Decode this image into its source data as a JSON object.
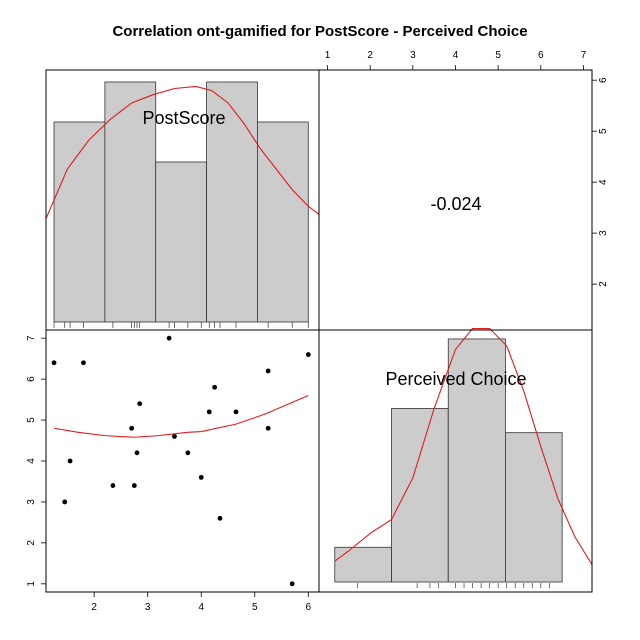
{
  "chart_data": {
    "type": "pairs",
    "title": "Correlation ont-gamified for PostScore - Perceived Choice",
    "variables": [
      "PostScore",
      "Perceived Choice"
    ],
    "correlation": "-0.024",
    "postscore_axis": {
      "range": [
        1.1,
        6.2
      ],
      "ticks": [
        2,
        3,
        4,
        5,
        6
      ]
    },
    "choice_axis": {
      "range": [
        0.8,
        7.2
      ],
      "ticks": [
        1,
        2,
        3,
        4,
        5,
        6,
        7
      ]
    },
    "postscore_histogram": {
      "bins": [
        [
          1.25,
          2.2
        ],
        [
          2.2,
          3.15
        ],
        [
          3.15,
          4.1
        ],
        [
          4.1,
          5.05
        ],
        [
          5.05,
          6.0
        ]
      ],
      "heights": [
        5,
        6,
        4,
        6,
        5
      ],
      "density_y_range": [
        0,
        6.25
      ]
    },
    "choice_histogram": {
      "bins": [
        [
          1.17,
          2.5
        ],
        [
          2.5,
          3.83
        ],
        [
          3.83,
          5.17
        ],
        [
          5.17,
          6.5
        ]
      ],
      "heights": [
        1,
        5,
        7,
        4.3
      ],
      "density_y_range": [
        0,
        7.2
      ]
    },
    "postscore_density": [
      [
        1.1,
        2.7
      ],
      [
        1.5,
        3.9
      ],
      [
        1.9,
        4.6
      ],
      [
        2.3,
        5.1
      ],
      [
        2.7,
        5.5
      ],
      [
        3.1,
        5.7
      ],
      [
        3.5,
        5.85
      ],
      [
        3.9,
        5.9
      ],
      [
        4.2,
        5.8
      ],
      [
        4.5,
        5.5
      ],
      [
        4.8,
        5.0
      ],
      [
        5.1,
        4.4
      ],
      [
        5.4,
        3.9
      ],
      [
        5.7,
        3.4
      ],
      [
        6.0,
        3.0
      ],
      [
        6.2,
        2.8
      ]
    ],
    "choice_density": [
      [
        1.17,
        0.6
      ],
      [
        1.5,
        0.9
      ],
      [
        2.0,
        1.4
      ],
      [
        2.5,
        1.8
      ],
      [
        3.0,
        3.0
      ],
      [
        3.5,
        5.0
      ],
      [
        4.0,
        6.7
      ],
      [
        4.4,
        7.3
      ],
      [
        4.8,
        7.3
      ],
      [
        5.2,
        6.8
      ],
      [
        5.6,
        5.5
      ],
      [
        6.0,
        3.9
      ],
      [
        6.4,
        2.4
      ],
      [
        6.8,
        1.3
      ],
      [
        7.2,
        0.5
      ]
    ],
    "points": [
      [
        1.25,
        6.4
      ],
      [
        1.45,
        3.0
      ],
      [
        1.55,
        4.0
      ],
      [
        1.8,
        6.4
      ],
      [
        2.35,
        3.4
      ],
      [
        2.7,
        4.8
      ],
      [
        2.75,
        3.4
      ],
      [
        2.8,
        4.2
      ],
      [
        2.85,
        5.4
      ],
      [
        3.4,
        7.0
      ],
      [
        3.5,
        4.6
      ],
      [
        3.75,
        4.2
      ],
      [
        4.0,
        3.6
      ],
      [
        4.15,
        5.2
      ],
      [
        4.25,
        5.8
      ],
      [
        4.35,
        2.6
      ],
      [
        4.65,
        5.2
      ],
      [
        5.25,
        6.2
      ],
      [
        5.25,
        4.8
      ],
      [
        5.7,
        1.0
      ],
      [
        6.0,
        6.6
      ]
    ],
    "loess": [
      [
        1.25,
        4.8
      ],
      [
        1.7,
        4.7
      ],
      [
        2.2,
        4.62
      ],
      [
        2.75,
        4.58
      ],
      [
        3.2,
        4.62
      ],
      [
        3.75,
        4.7
      ],
      [
        4.0,
        4.72
      ],
      [
        4.65,
        4.9
      ],
      [
        5.2,
        5.15
      ],
      [
        6.0,
        5.6
      ]
    ],
    "postscore_rug": [
      1.25,
      1.45,
      1.55,
      1.8,
      2.35,
      2.7,
      2.75,
      2.8,
      2.85,
      3.4,
      3.5,
      3.75,
      4.0,
      4.15,
      4.25,
      4.35,
      4.65,
      5.25,
      5.7,
      6.0
    ],
    "choice_rug": [
      1.7,
      3.1,
      3.4,
      3.6,
      4.0,
      4.2,
      4.4,
      4.6,
      4.8,
      5.0,
      5.2,
      5.4,
      5.6,
      5.8,
      6.0,
      6.2
    ]
  }
}
